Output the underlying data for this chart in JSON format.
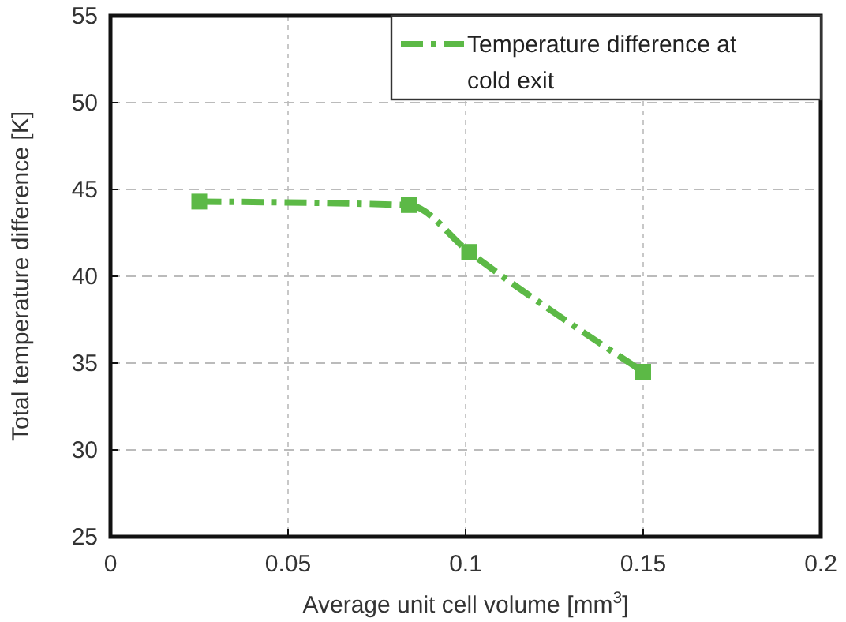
{
  "chart_data": {
    "type": "line",
    "xlabel": "Average unit cell volume [mm$^{3}$]",
    "ylabel": "Total temperature difference [K]",
    "x": [
      0.025,
      0.084,
      0.101,
      0.15
    ],
    "series": [
      {
        "name": "Temperature difference at cold exit",
        "color": "#5cb946",
        "values": [
          44.3,
          44.1,
          41.4,
          34.5
        ]
      }
    ],
    "xlim": [
      0,
      0.2
    ],
    "xticks": [
      0,
      0.05,
      0.1,
      0.15,
      0.2
    ],
    "ylim": [
      25,
      55
    ],
    "yticks": [
      25,
      30,
      35,
      40,
      45,
      50,
      55
    ],
    "grid": true,
    "legend": "top right",
    "marker": "square",
    "line_style": "dashed"
  }
}
